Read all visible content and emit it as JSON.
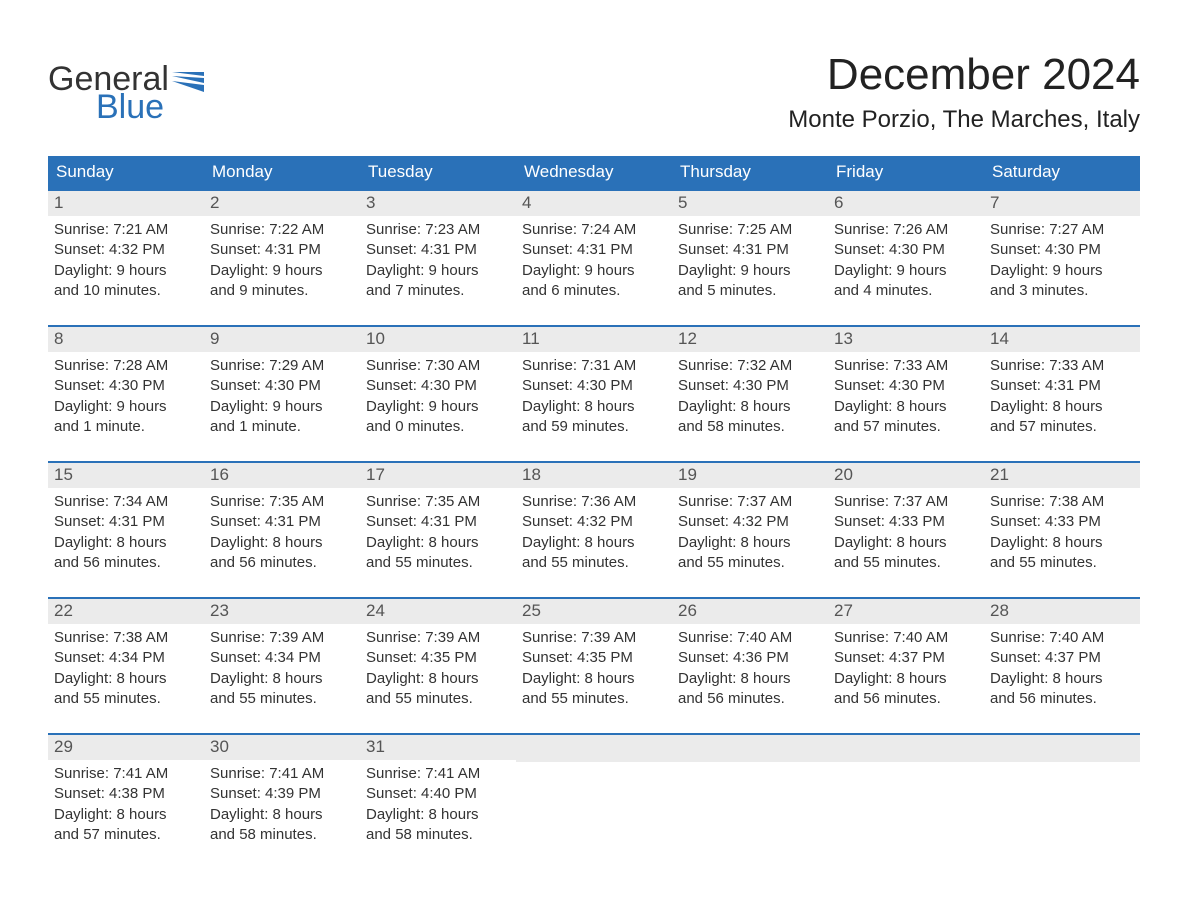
{
  "logo": {
    "text1": "General",
    "text2": "Blue"
  },
  "title": "December 2024",
  "location": "Monte Porzio, The Marches, Italy",
  "colors": {
    "header_bg": "#2a71b8",
    "header_text": "#ffffff",
    "daynum_bg": "#ebebeb",
    "daynum_text": "#555555",
    "body_text": "#333333",
    "rule": "#2a71b8"
  },
  "weekdays": [
    "Sunday",
    "Monday",
    "Tuesday",
    "Wednesday",
    "Thursday",
    "Friday",
    "Saturday"
  ],
  "weeks": [
    [
      {
        "n": "1",
        "sunrise": "7:21 AM",
        "sunset": "4:32 PM",
        "dl1": "9 hours",
        "dl2": "and 10 minutes."
      },
      {
        "n": "2",
        "sunrise": "7:22 AM",
        "sunset": "4:31 PM",
        "dl1": "9 hours",
        "dl2": "and 9 minutes."
      },
      {
        "n": "3",
        "sunrise": "7:23 AM",
        "sunset": "4:31 PM",
        "dl1": "9 hours",
        "dl2": "and 7 minutes."
      },
      {
        "n": "4",
        "sunrise": "7:24 AM",
        "sunset": "4:31 PM",
        "dl1": "9 hours",
        "dl2": "and 6 minutes."
      },
      {
        "n": "5",
        "sunrise": "7:25 AM",
        "sunset": "4:31 PM",
        "dl1": "9 hours",
        "dl2": "and 5 minutes."
      },
      {
        "n": "6",
        "sunrise": "7:26 AM",
        "sunset": "4:30 PM",
        "dl1": "9 hours",
        "dl2": "and 4 minutes."
      },
      {
        "n": "7",
        "sunrise": "7:27 AM",
        "sunset": "4:30 PM",
        "dl1": "9 hours",
        "dl2": "and 3 minutes."
      }
    ],
    [
      {
        "n": "8",
        "sunrise": "7:28 AM",
        "sunset": "4:30 PM",
        "dl1": "9 hours",
        "dl2": "and 1 minute."
      },
      {
        "n": "9",
        "sunrise": "7:29 AM",
        "sunset": "4:30 PM",
        "dl1": "9 hours",
        "dl2": "and 1 minute."
      },
      {
        "n": "10",
        "sunrise": "7:30 AM",
        "sunset": "4:30 PM",
        "dl1": "9 hours",
        "dl2": "and 0 minutes."
      },
      {
        "n": "11",
        "sunrise": "7:31 AM",
        "sunset": "4:30 PM",
        "dl1": "8 hours",
        "dl2": "and 59 minutes."
      },
      {
        "n": "12",
        "sunrise": "7:32 AM",
        "sunset": "4:30 PM",
        "dl1": "8 hours",
        "dl2": "and 58 minutes."
      },
      {
        "n": "13",
        "sunrise": "7:33 AM",
        "sunset": "4:30 PM",
        "dl1": "8 hours",
        "dl2": "and 57 minutes."
      },
      {
        "n": "14",
        "sunrise": "7:33 AM",
        "sunset": "4:31 PM",
        "dl1": "8 hours",
        "dl2": "and 57 minutes."
      }
    ],
    [
      {
        "n": "15",
        "sunrise": "7:34 AM",
        "sunset": "4:31 PM",
        "dl1": "8 hours",
        "dl2": "and 56 minutes."
      },
      {
        "n": "16",
        "sunrise": "7:35 AM",
        "sunset": "4:31 PM",
        "dl1": "8 hours",
        "dl2": "and 56 minutes."
      },
      {
        "n": "17",
        "sunrise": "7:35 AM",
        "sunset": "4:31 PM",
        "dl1": "8 hours",
        "dl2": "and 55 minutes."
      },
      {
        "n": "18",
        "sunrise": "7:36 AM",
        "sunset": "4:32 PM",
        "dl1": "8 hours",
        "dl2": "and 55 minutes."
      },
      {
        "n": "19",
        "sunrise": "7:37 AM",
        "sunset": "4:32 PM",
        "dl1": "8 hours",
        "dl2": "and 55 minutes."
      },
      {
        "n": "20",
        "sunrise": "7:37 AM",
        "sunset": "4:33 PM",
        "dl1": "8 hours",
        "dl2": "and 55 minutes."
      },
      {
        "n": "21",
        "sunrise": "7:38 AM",
        "sunset": "4:33 PM",
        "dl1": "8 hours",
        "dl2": "and 55 minutes."
      }
    ],
    [
      {
        "n": "22",
        "sunrise": "7:38 AM",
        "sunset": "4:34 PM",
        "dl1": "8 hours",
        "dl2": "and 55 minutes."
      },
      {
        "n": "23",
        "sunrise": "7:39 AM",
        "sunset": "4:34 PM",
        "dl1": "8 hours",
        "dl2": "and 55 minutes."
      },
      {
        "n": "24",
        "sunrise": "7:39 AM",
        "sunset": "4:35 PM",
        "dl1": "8 hours",
        "dl2": "and 55 minutes."
      },
      {
        "n": "25",
        "sunrise": "7:39 AM",
        "sunset": "4:35 PM",
        "dl1": "8 hours",
        "dl2": "and 55 minutes."
      },
      {
        "n": "26",
        "sunrise": "7:40 AM",
        "sunset": "4:36 PM",
        "dl1": "8 hours",
        "dl2": "and 56 minutes."
      },
      {
        "n": "27",
        "sunrise": "7:40 AM",
        "sunset": "4:37 PM",
        "dl1": "8 hours",
        "dl2": "and 56 minutes."
      },
      {
        "n": "28",
        "sunrise": "7:40 AM",
        "sunset": "4:37 PM",
        "dl1": "8 hours",
        "dl2": "and 56 minutes."
      }
    ],
    [
      {
        "n": "29",
        "sunrise": "7:41 AM",
        "sunset": "4:38 PM",
        "dl1": "8 hours",
        "dl2": "and 57 minutes."
      },
      {
        "n": "30",
        "sunrise": "7:41 AM",
        "sunset": "4:39 PM",
        "dl1": "8 hours",
        "dl2": "and 58 minutes."
      },
      {
        "n": "31",
        "sunrise": "7:41 AM",
        "sunset": "4:40 PM",
        "dl1": "8 hours",
        "dl2": "and 58 minutes."
      },
      {
        "empty": true
      },
      {
        "empty": true
      },
      {
        "empty": true
      },
      {
        "empty": true
      }
    ]
  ],
  "labels": {
    "sunrise": "Sunrise:",
    "sunset": "Sunset:",
    "daylight": "Daylight:"
  }
}
